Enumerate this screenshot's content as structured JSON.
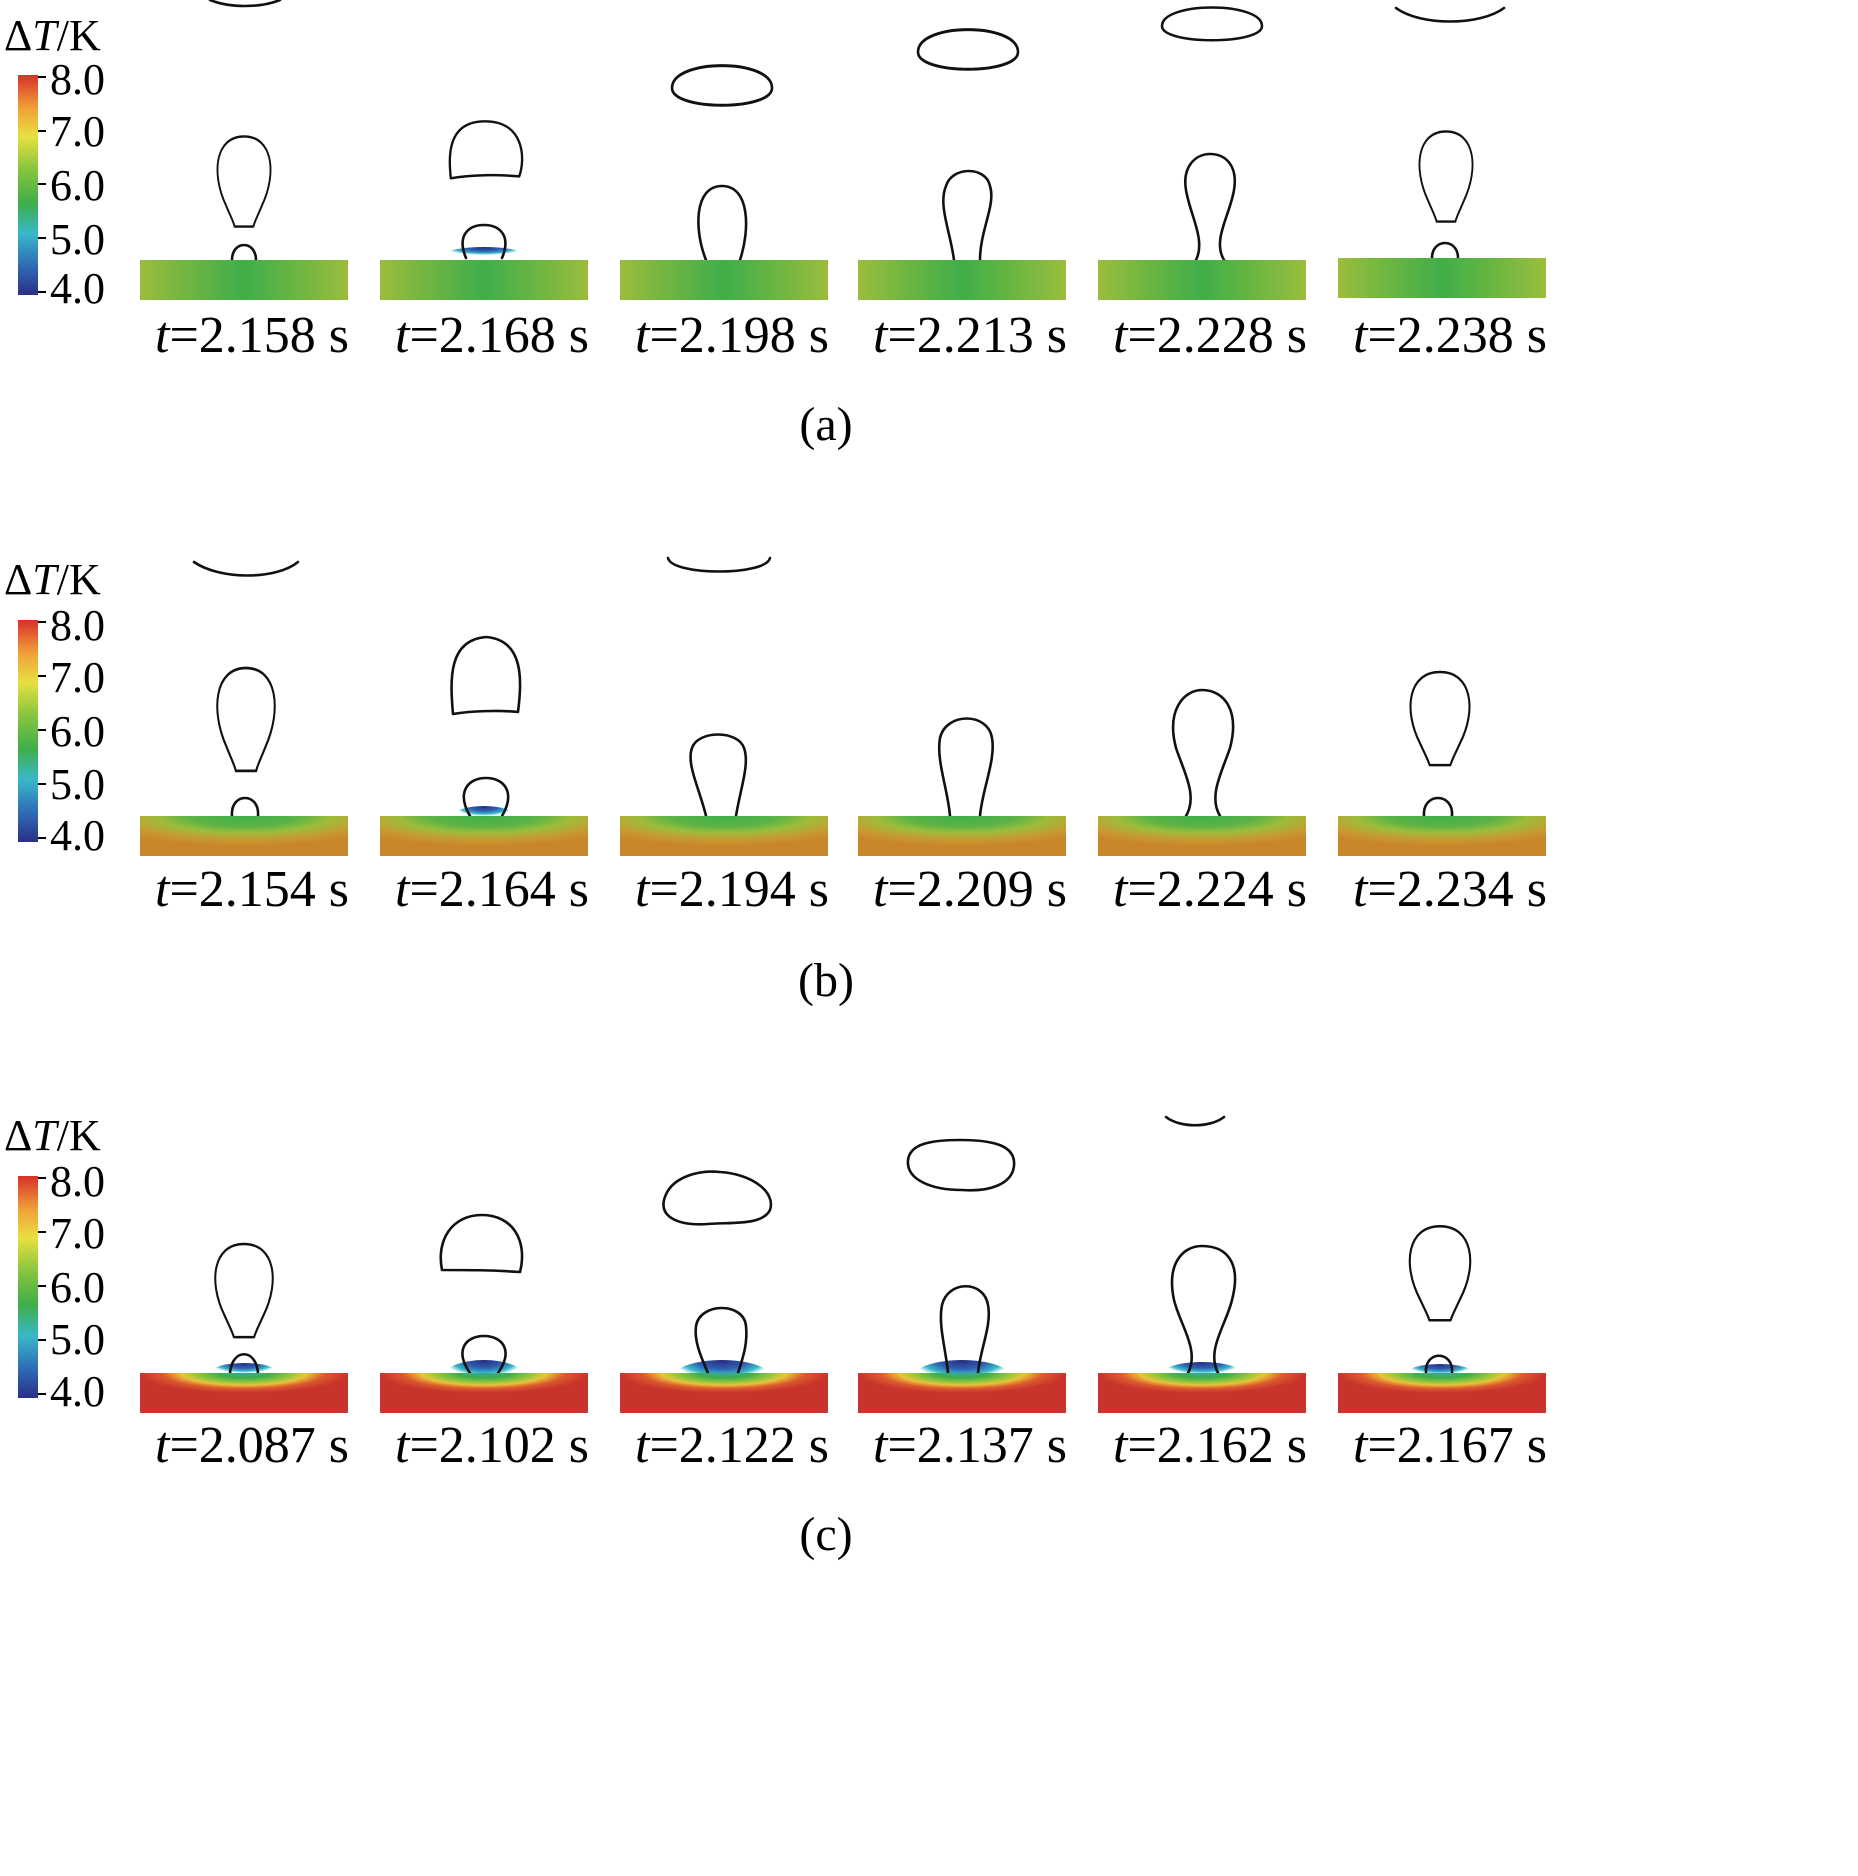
{
  "colorbar": {
    "symbol": "Δ",
    "var": "T",
    "unit": "/K",
    "ticks": [
      "8.0",
      "7.0",
      "6.0",
      "5.0",
      "4.0"
    ],
    "colors": [
      "#d7302a",
      "#f0a038",
      "#e8e040",
      "#8cc63e",
      "#3fae49",
      "#38b8c8",
      "#2f6fb8",
      "#2b2f86"
    ]
  },
  "panels": [
    {
      "label": "(a)",
      "plate_colors": {
        "edge": "#9bbd3c",
        "center": "#3fae49"
      },
      "frames": [
        {
          "t": "t",
          "time": "=2.158 s"
        },
        {
          "t": "t",
          "time": "=2.168 s"
        },
        {
          "t": "t",
          "time": "=2.198 s"
        },
        {
          "t": "t",
          "time": "=2.213 s"
        },
        {
          "t": "t",
          "time": "=2.228 s"
        },
        {
          "t": "t",
          "time": "=2.238 s"
        }
      ]
    },
    {
      "label": "(b)",
      "plate_colors": {
        "edge": "#c98a2c",
        "center": "#3fae49"
      },
      "frames": [
        {
          "t": "t",
          "time": "=2.154 s"
        },
        {
          "t": "t",
          "time": "=2.164 s"
        },
        {
          "t": "t",
          "time": "=2.194 s"
        },
        {
          "t": "t",
          "time": "=2.209 s"
        },
        {
          "t": "t",
          "time": "=2.224 s"
        },
        {
          "t": "t",
          "time": "=2.234 s"
        }
      ]
    },
    {
      "label": "(c)",
      "plate_colors": {
        "edge": "#c8342b",
        "center": "#3fae49"
      },
      "frames": [
        {
          "t": "t",
          "time": "=2.087 s"
        },
        {
          "t": "t",
          "time": "=2.102 s"
        },
        {
          "t": "t",
          "time": "=2.122 s"
        },
        {
          "t": "t",
          "time": "=2.137 s"
        },
        {
          "t": "t",
          "time": "=2.162 s"
        },
        {
          "t": "t",
          "time": "=2.167 s"
        }
      ]
    }
  ]
}
